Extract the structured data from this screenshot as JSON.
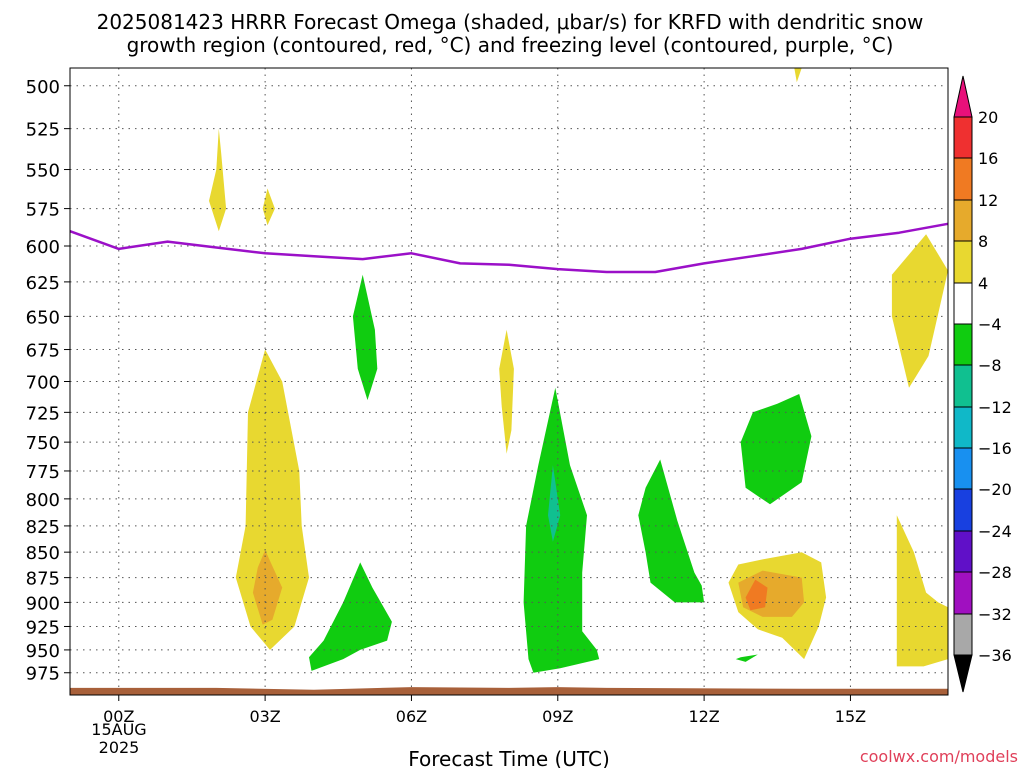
{
  "header": {
    "title_line1": "2025081423 HRRR Forecast Omega (shaded, μbar/s) for KRFD with dendritic snow",
    "title_line2": "growth region (contoured, red, °C) and freezing level (contoured, purple, °C)"
  },
  "footer": {
    "credit": "coolwx.com/models"
  },
  "chart_data": {
    "type": "heatmap",
    "xlabel": "Forecast Time (UTC)",
    "x_ticks": [
      {
        "hour": 0,
        "label": "00Z"
      },
      {
        "hour": 3,
        "label": "03Z"
      },
      {
        "hour": 6,
        "label": "06Z"
      },
      {
        "hour": 9,
        "label": "09Z"
      },
      {
        "hour": 12,
        "label": "12Z"
      },
      {
        "hour": 15,
        "label": "15Z"
      }
    ],
    "x_date_line1": "15AUG",
    "x_date_line2": "2025",
    "xlim": [
      -1,
      17
    ],
    "y_scale": "log-pressure",
    "ylim": [
      1000,
      490
    ],
    "y_ticks": [
      500,
      525,
      550,
      575,
      600,
      625,
      650,
      675,
      700,
      725,
      750,
      775,
      800,
      825,
      850,
      875,
      900,
      925,
      950,
      975
    ],
    "grid": true,
    "colorbar": {
      "labels": [
        "20",
        "16",
        "12",
        "8",
        "4",
        "−4",
        "−8",
        "−12",
        "−16",
        "−20",
        "−24",
        "−28",
        "−32",
        "−36"
      ],
      "colors_top_to_bottom": [
        "#e8107a",
        "#ef3030",
        "#f07a22",
        "#e6aa2c",
        "#e8d830",
        "#ffffff",
        "#10cc10",
        "#10c090",
        "#10b8c8",
        "#1890f0",
        "#1840e0",
        "#6010c8",
        "#a010c0",
        "#a8a8a8",
        "#000000"
      ]
    },
    "freezing_level": {
      "color": "#9b10c8",
      "points": [
        [
          -1,
          590
        ],
        [
          0,
          602
        ],
        [
          1,
          597
        ],
        [
          2,
          601
        ],
        [
          3,
          605
        ],
        [
          4,
          607
        ],
        [
          5,
          609
        ],
        [
          6,
          605
        ],
        [
          7,
          612
        ],
        [
          8,
          613
        ],
        [
          9,
          616
        ],
        [
          10,
          618
        ],
        [
          11,
          618
        ],
        [
          12,
          612
        ],
        [
          13,
          607
        ],
        [
          14,
          602
        ],
        [
          15,
          595
        ],
        [
          16,
          591
        ],
        [
          17,
          585
        ]
      ]
    },
    "omega_regions": [
      {
        "color": "#e8d830",
        "points": [
          [
            2.05,
            525
          ],
          [
            2.1,
            540
          ],
          [
            2.2,
            575
          ],
          [
            2.05,
            590
          ],
          [
            1.85,
            570
          ],
          [
            2.0,
            550
          ]
        ]
      },
      {
        "color": "#e8d830",
        "points": [
          [
            3.05,
            562
          ],
          [
            3.2,
            575
          ],
          [
            3.05,
            586
          ],
          [
            2.95,
            575
          ]
        ]
      },
      {
        "color": "#e8d830",
        "points": [
          [
            14.0,
            490
          ],
          [
            13.9,
            498
          ],
          [
            13.85,
            490
          ]
        ]
      },
      {
        "color": "#e8d830",
        "points": [
          [
            3.0,
            675
          ],
          [
            3.35,
            700
          ],
          [
            3.7,
            775
          ],
          [
            3.75,
            825
          ],
          [
            3.9,
            875
          ],
          [
            3.6,
            925
          ],
          [
            3.1,
            950
          ],
          [
            2.7,
            925
          ],
          [
            2.4,
            875
          ],
          [
            2.6,
            825
          ],
          [
            2.65,
            725
          ]
        ]
      },
      {
        "color": "#e6aa2c",
        "points": [
          [
            3.0,
            848
          ],
          [
            3.35,
            885
          ],
          [
            3.15,
            918
          ],
          [
            2.95,
            923
          ],
          [
            2.75,
            890
          ],
          [
            2.85,
            865
          ]
        ]
      },
      {
        "color": "#10cc10",
        "points": [
          [
            5.0,
            620
          ],
          [
            5.25,
            660
          ],
          [
            5.3,
            690
          ],
          [
            5.1,
            715
          ],
          [
            4.9,
            690
          ],
          [
            4.8,
            650
          ]
        ]
      },
      {
        "color": "#e8d830",
        "points": [
          [
            7.95,
            660
          ],
          [
            8.1,
            690
          ],
          [
            8.05,
            740
          ],
          [
            7.95,
            760
          ],
          [
            7.85,
            720
          ],
          [
            7.8,
            690
          ]
        ]
      },
      {
        "color": "#10cc10",
        "points": [
          [
            4.95,
            860
          ],
          [
            5.2,
            885
          ],
          [
            5.6,
            920
          ],
          [
            5.5,
            940
          ],
          [
            4.95,
            950
          ],
          [
            4.6,
            960
          ],
          [
            3.95,
            973
          ],
          [
            3.9,
            958
          ],
          [
            4.2,
            940
          ],
          [
            4.6,
            900
          ]
        ]
      },
      {
        "color": "#10cc10",
        "points": [
          [
            8.95,
            705
          ],
          [
            9.25,
            770
          ],
          [
            9.6,
            815
          ],
          [
            9.5,
            870
          ],
          [
            9.5,
            930
          ],
          [
            9.8,
            950
          ],
          [
            9.85,
            960
          ],
          [
            9.05,
            970
          ],
          [
            8.5,
            975
          ],
          [
            8.4,
            960
          ],
          [
            8.3,
            900
          ],
          [
            8.35,
            825
          ],
          [
            8.6,
            770
          ]
        ]
      },
      {
        "color": "#10c090",
        "points": [
          [
            8.9,
            770
          ],
          [
            9.05,
            815
          ],
          [
            8.9,
            840
          ],
          [
            8.8,
            815
          ]
        ]
      },
      {
        "color": "#10cc10",
        "points": [
          [
            11.1,
            765
          ],
          [
            11.45,
            820
          ],
          [
            11.8,
            870
          ],
          [
            11.95,
            883
          ],
          [
            12.0,
            900
          ],
          [
            11.4,
            900
          ],
          [
            10.9,
            880
          ],
          [
            10.8,
            850
          ],
          [
            10.65,
            815
          ],
          [
            10.8,
            790
          ]
        ]
      },
      {
        "color": "#10cc10",
        "points": [
          [
            13.95,
            710
          ],
          [
            14.2,
            745
          ],
          [
            14.0,
            785
          ],
          [
            13.35,
            805
          ],
          [
            12.85,
            790
          ],
          [
            12.75,
            750
          ],
          [
            13.0,
            725
          ],
          [
            13.5,
            718
          ]
        ]
      },
      {
        "color": "#e8d830",
        "points": [
          [
            13.2,
            857
          ],
          [
            14.0,
            850
          ],
          [
            14.4,
            860
          ],
          [
            14.5,
            895
          ],
          [
            14.35,
            925
          ],
          [
            14.05,
            960
          ],
          [
            13.6,
            937
          ],
          [
            13.1,
            928
          ],
          [
            12.7,
            910
          ],
          [
            12.5,
            880
          ],
          [
            12.7,
            862
          ]
        ]
      },
      {
        "color": "#e6aa2c",
        "points": [
          [
            13.2,
            868
          ],
          [
            14.0,
            875
          ],
          [
            14.05,
            900
          ],
          [
            13.8,
            915
          ],
          [
            13.2,
            915
          ],
          [
            12.8,
            905
          ],
          [
            12.7,
            880
          ]
        ]
      },
      {
        "color": "#f07a22",
        "points": [
          [
            13.05,
            877
          ],
          [
            13.3,
            885
          ],
          [
            13.25,
            905
          ],
          [
            12.95,
            908
          ],
          [
            12.85,
            895
          ]
        ]
      },
      {
        "color": "#10cc10",
        "points": [
          [
            12.75,
            958
          ],
          [
            13.1,
            955
          ],
          [
            12.85,
            963
          ],
          [
            12.65,
            960
          ]
        ]
      },
      {
        "color": "#e8d830",
        "points": [
          [
            16.55,
            592
          ],
          [
            17.0,
            617
          ],
          [
            16.85,
            640
          ],
          [
            16.6,
            680
          ],
          [
            16.2,
            705
          ],
          [
            15.85,
            650
          ],
          [
            15.85,
            620
          ]
        ]
      },
      {
        "color": "#e8d830",
        "points": [
          [
            15.95,
            815
          ],
          [
            16.3,
            850
          ],
          [
            16.55,
            890
          ],
          [
            16.8,
            900
          ],
          [
            17.0,
            905
          ],
          [
            17.0,
            960
          ],
          [
            16.5,
            968
          ],
          [
            15.95,
            968
          ],
          [
            15.95,
            900
          ]
        ]
      }
    ],
    "terrain": {
      "color": "#a8603a",
      "top_points": [
        [
          -1,
          992
        ],
        [
          2,
          992
        ],
        [
          4,
          994
        ],
        [
          6,
          991
        ],
        [
          8,
          992
        ],
        [
          9,
          991
        ],
        [
          10,
          992
        ],
        [
          14,
          993
        ],
        [
          17,
          993
        ]
      ]
    }
  }
}
